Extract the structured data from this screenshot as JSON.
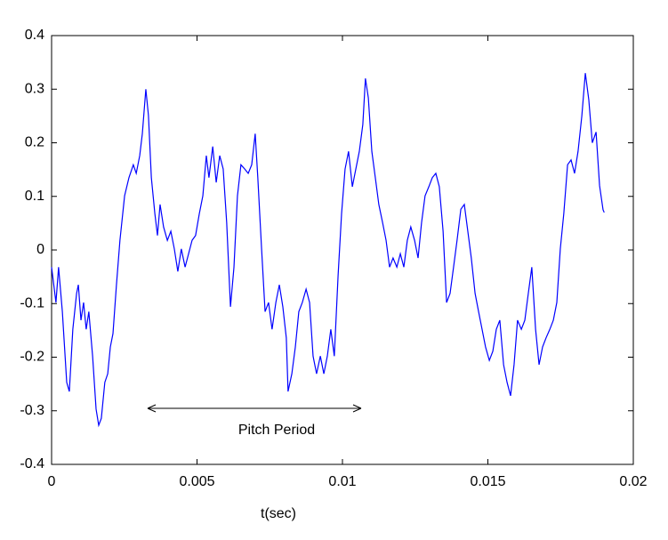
{
  "chart_data": {
    "type": "line",
    "xlabel": "t(sec)",
    "annotation": "Pitch Period",
    "xlim": [
      0,
      0.02
    ],
    "xticks": [
      0,
      0.005,
      0.01,
      0.015,
      0.02
    ],
    "ylim": [
      -0.4,
      0.4
    ],
    "yticks": [
      -0.4,
      -0.3,
      -0.2,
      -0.1,
      0,
      0.1,
      0.2,
      0.3,
      0.4
    ],
    "series": [
      {
        "color": "#0000ff",
        "x": [
          0,
          0.00015,
          0.00024,
          0.00037,
          0.00052,
          0.00061,
          0.00073,
          0.00086,
          0.00092,
          0.00101,
          0.0011,
          0.00119,
          0.00128,
          0.00141,
          0.00153,
          0.00162,
          0.00171,
          0.00183,
          0.00193,
          0.00202,
          0.00211,
          0.00223,
          0.00235,
          0.00251,
          0.00266,
          0.00281,
          0.00291,
          0.00303,
          0.00312,
          0.00324,
          0.00333,
          0.00343,
          0.00355,
          0.00364,
          0.00373,
          0.00385,
          0.00398,
          0.0041,
          0.00422,
          0.00434,
          0.00446,
          0.00459,
          0.00471,
          0.00483,
          0.00495,
          0.00508,
          0.0052,
          0.00532,
          0.00541,
          0.00554,
          0.00566,
          0.00578,
          0.0059,
          0.00602,
          0.00615,
          0.00627,
          0.00639,
          0.00651,
          0.00664,
          0.00676,
          0.00688,
          0.007,
          0.00709,
          0.00722,
          0.00734,
          0.00746,
          0.00758,
          0.00771,
          0.00783,
          0.00795,
          0.00807,
          0.00813,
          0.00826,
          0.00838,
          0.0085,
          0.00862,
          0.00875,
          0.00887,
          0.00899,
          0.00911,
          0.00924,
          0.00936,
          0.00948,
          0.0096,
          0.00972,
          0.00985,
          0.00997,
          0.01009,
          0.01021,
          0.01034,
          0.01046,
          0.01058,
          0.0107,
          0.01079,
          0.01089,
          0.01101,
          0.01113,
          0.01125,
          0.01138,
          0.0115,
          0.01162,
          0.01174,
          0.01187,
          0.01199,
          0.01211,
          0.01223,
          0.01235,
          0.01248,
          0.0126,
          0.01272,
          0.01284,
          0.01297,
          0.01309,
          0.01321,
          0.01333,
          0.01346,
          0.01358,
          0.0137,
          0.01382,
          0.01394,
          0.01407,
          0.01419,
          0.01431,
          0.01443,
          0.01456,
          0.01468,
          0.0148,
          0.01492,
          0.01505,
          0.01517,
          0.01529,
          0.01541,
          0.01554,
          0.01566,
          0.01578,
          0.0159,
          0.01602,
          0.01615,
          0.01627,
          0.01639,
          0.01651,
          0.01664,
          0.01676,
          0.01688,
          0.017,
          0.01713,
          0.01725,
          0.01737,
          0.01749,
          0.01761,
          0.01774,
          0.01786,
          0.01798,
          0.0181,
          0.01823,
          0.01835,
          0.01847,
          0.01859,
          0.01872,
          0.01884,
          0.01896,
          0.019
        ],
        "values": [
          -0.032,
          -0.098,
          -0.032,
          -0.115,
          -0.247,
          -0.264,
          -0.148,
          -0.081,
          -0.065,
          -0.131,
          -0.098,
          -0.148,
          -0.115,
          -0.198,
          -0.297,
          -0.327,
          -0.314,
          -0.247,
          -0.231,
          -0.181,
          -0.156,
          -0.065,
          0.018,
          0.101,
          0.135,
          0.159,
          0.143,
          0.176,
          0.217,
          0.3,
          0.251,
          0.135,
          0.068,
          0.027,
          0.085,
          0.043,
          0.018,
          0.035,
          0.002,
          -0.04,
          0.002,
          -0.032,
          -0.007,
          0.018,
          0.027,
          0.068,
          0.101,
          0.176,
          0.135,
          0.193,
          0.126,
          0.176,
          0.151,
          0.051,
          -0.106,
          -0.032,
          0.101,
          0.159,
          0.151,
          0.143,
          0.159,
          0.217,
          0.135,
          0.002,
          -0.115,
          -0.098,
          -0.148,
          -0.098,
          -0.065,
          -0.106,
          -0.164,
          -0.264,
          -0.231,
          -0.181,
          -0.115,
          -0.098,
          -0.073,
          -0.098,
          -0.198,
          -0.231,
          -0.198,
          -0.231,
          -0.198,
          -0.148,
          -0.198,
          -0.048,
          0.068,
          0.151,
          0.184,
          0.118,
          0.151,
          0.184,
          0.234,
          0.32,
          0.284,
          0.184,
          0.135,
          0.085,
          0.051,
          0.018,
          -0.032,
          -0.015,
          -0.032,
          -0.007,
          -0.032,
          0.018,
          0.043,
          0.018,
          -0.015,
          0.051,
          0.101,
          0.118,
          0.135,
          0.143,
          0.118,
          0.035,
          -0.098,
          -0.081,
          -0.032,
          0.018,
          0.076,
          0.085,
          0.035,
          -0.015,
          -0.081,
          -0.115,
          -0.148,
          -0.181,
          -0.206,
          -0.189,
          -0.148,
          -0.131,
          -0.214,
          -0.247,
          -0.272,
          -0.214,
          -0.131,
          -0.148,
          -0.131,
          -0.081,
          -0.032,
          -0.148,
          -0.214,
          -0.181,
          -0.164,
          -0.148,
          -0.131,
          -0.098,
          0.002,
          0.068,
          0.159,
          0.168,
          0.143,
          0.184,
          0.25,
          0.33,
          0.28,
          0.2,
          0.22,
          0.12,
          0.075,
          0.07
        ]
      }
    ]
  }
}
